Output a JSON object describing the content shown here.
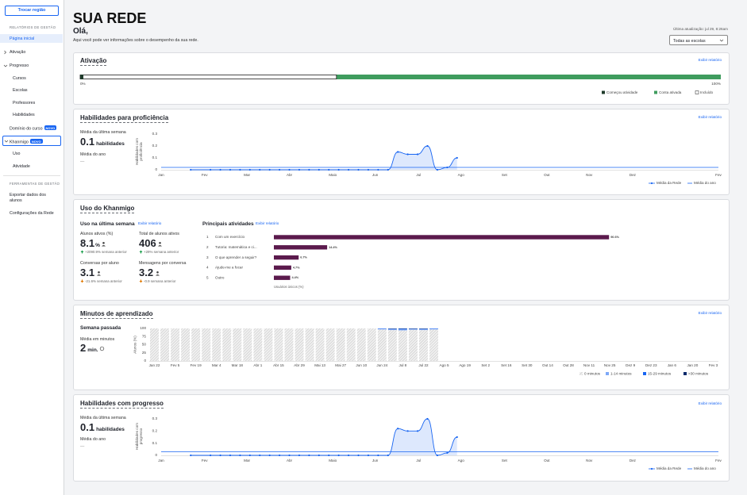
{
  "sidebar": {
    "button": "Trocar região",
    "reports_heading": "RELATÓRIOS DE GESTÃO",
    "items": [
      {
        "label": "Página inicial"
      },
      {
        "label": "Ativação"
      },
      {
        "label": "Progresso"
      },
      {
        "label": "Cursos"
      },
      {
        "label": "Escolas"
      },
      {
        "label": "Professores"
      },
      {
        "label": "Habilidades"
      },
      {
        "label": "Domínio do curso",
        "badge": "NOVO"
      },
      {
        "label": "Khanmigo",
        "badge": "NOVO"
      },
      {
        "label": "Uso"
      },
      {
        "label": "Atividade"
      }
    ],
    "tools_heading": "FERRAMENTAS DE GESTÃO",
    "tools": [
      "Exportar dados dos alunos",
      "Configurações da Rede"
    ]
  },
  "header": {
    "title": "SUA REDE",
    "greeting": "Olá,",
    "subtitle": "Aqui você pode ver informações sobre o desempenho da sua rede.",
    "last_update": "Última atualização: jul 29, 8:26am",
    "school_filter": "Todas as escolas"
  },
  "activation": {
    "title": "Ativação",
    "link": "Exibir relatório",
    "chart_data": {
      "type": "bar",
      "orientation": "horizontal",
      "xlim": [
        0,
        100
      ],
      "xticks": [
        {
          "value": 0,
          "label": "0%"
        },
        {
          "value": 100,
          "label": "100%"
        }
      ],
      "series": [
        {
          "name": "Conta ativada",
          "color": "#3f9c5e",
          "values": [
            100
          ]
        },
        {
          "name": "Incluído",
          "color": "#ffffff",
          "stroke": "#1f1f1f",
          "values": [
            40
          ]
        },
        {
          "name": "Começou atividade",
          "color": "#1e3a2a",
          "values": [
            0.5
          ]
        }
      ]
    }
  },
  "proficiency": {
    "title": "Habilidades para proficiência",
    "link": "Exibir relatório",
    "week_label": "Média da última semana",
    "week_value": 0.1,
    "week_unit": "habilidades",
    "year_label": "Média do ano",
    "year_value": "—",
    "chart_data": {
      "type": "line",
      "y_label": "Habilidades com proficiência",
      "x": [
        3,
        5,
        6,
        7,
        8,
        9,
        10,
        11,
        12,
        13,
        14,
        15,
        16,
        17,
        18,
        19,
        20,
        21,
        22,
        23,
        24,
        25,
        26,
        27,
        28,
        29,
        30
      ],
      "xlim": [
        0,
        56.5
      ],
      "xticks": [
        {
          "value": 0,
          "label": "Jan"
        },
        {
          "value": 4.4,
          "label": "Fev"
        },
        {
          "value": 8.7,
          "label": "Mar"
        },
        {
          "value": 13,
          "label": "Abr"
        },
        {
          "value": 17.4,
          "label": "Maio"
        },
        {
          "value": 21.7,
          "label": "Jun"
        },
        {
          "value": 26.1,
          "label": "Jul"
        },
        {
          "value": 30.4,
          "label": "Ago"
        },
        {
          "value": 34.8,
          "label": "Set"
        },
        {
          "value": 39.1,
          "label": "Out"
        },
        {
          "value": 43.4,
          "label": "Nov"
        },
        {
          "value": 47.8,
          "label": "Dez"
        },
        {
          "value": 56.5,
          "label": "Fev"
        }
      ],
      "ylim": [
        0,
        0.3
      ],
      "yticks": [
        0,
        0.1,
        0.2,
        0.3
      ],
      "series": [
        {
          "name": "Média da Rede",
          "color": "#1865f2",
          "values": [
            0,
            0,
            0,
            0,
            0,
            0,
            0,
            0,
            0,
            0,
            0,
            0,
            0,
            0,
            0,
            0,
            0,
            0,
            0,
            0,
            0.15,
            0.13,
            0.13,
            0.2,
            0,
            0.02,
            0.1
          ]
        }
      ],
      "reference": {
        "name": "Média do ano",
        "color": "#1865f2",
        "value": 0.02
      }
    }
  },
  "khanmigo": {
    "title": "Uso do Khanmigo",
    "week_heading": "Uso na última semana",
    "link": "Exibir relatório",
    "metrics": [
      {
        "label": "Alunos ativos (%)",
        "value": 8.1,
        "unit": "%",
        "change": "+2090.9% semana anterior",
        "trend": "up"
      },
      {
        "label": "Total de alunos ativos",
        "value": 406,
        "change": "+29% semana anterior",
        "trend": "up"
      },
      {
        "label": "Conversas por aluno",
        "value": 3.1,
        "change": "-21.6% semana anterior",
        "trend": "down"
      },
      {
        "label": "Mensagens por conversa",
        "value": 3.2,
        "change": "-0.9 semana anterior",
        "trend": "down"
      }
    ],
    "activities": {
      "title": "Principais atividades",
      "link": "Exibir relatório",
      "chart_data": {
        "type": "bar",
        "orientation": "horizontal",
        "ranks": [
          1,
          2,
          3,
          4,
          5
        ],
        "categories": [
          "Com um exercício",
          "Tutoria: matemática e ci...",
          "O que aprender a seguir?",
          "Ajude-me a focar",
          "Outro"
        ],
        "values": [
          90.6,
          14.4,
          6.7,
          4.7,
          4.4
        ],
        "value_labels": [
          "90.6%",
          "14.4%",
          "6.7%",
          "4.7%",
          "4.4%"
        ],
        "xlim": [
          0,
          100
        ],
        "color": "#5b1a4d",
        "x_label": "Usuários únicos (%)"
      }
    }
  },
  "minutes": {
    "title": "Minutos de aprendizado",
    "link": "Exibir relatório",
    "week_heading": "Semana passada",
    "avg_label": "Média em minutos",
    "avg_value": 2,
    "avg_unit": "min.",
    "chart_data": {
      "type": "bar",
      "stacked": true,
      "y_label": "Alunos (%)",
      "categories": [
        "Jan 22",
        null,
        "Fev 5",
        null,
        "Fev 19",
        null,
        "Mar 4",
        null,
        "Mar 18",
        null,
        "Abr 1",
        null,
        "Abr 15",
        null,
        "Abr 29",
        null,
        "Mai 13",
        null,
        "Mai 27",
        null,
        "Jun 10",
        null,
        "Jun 24",
        null,
        "Jul 8",
        null,
        "Jul 22",
        null,
        "Ago 5",
        null,
        "Ago 19",
        null,
        "Set 2",
        null,
        "Set 16",
        null,
        "Set 30",
        null,
        "Out 14",
        null,
        "Out 28",
        null,
        "Nov 11",
        null,
        "Nov 25",
        null,
        "Dez 9",
        null,
        "Dez 23",
        null,
        "Jan 6",
        null,
        "Jan 20",
        null,
        "Fev 3"
      ],
      "ylim": [
        0,
        100
      ],
      "yticks": [
        0,
        25,
        50,
        75,
        100
      ],
      "series": [
        {
          "name": "0 minutos",
          "color": "#c6c6c6",
          "hatched": true,
          "values": [
            100,
            100,
            100,
            100,
            100,
            100,
            100,
            100,
            100,
            100,
            100,
            100,
            100,
            100,
            100,
            100,
            100,
            100,
            100,
            100,
            100,
            100,
            97,
            95,
            94,
            96,
            95,
            97,
            null,
            null,
            null,
            null,
            null,
            null,
            null,
            null,
            null,
            null,
            null,
            null,
            null,
            null,
            null,
            null,
            null,
            null,
            null,
            null,
            null,
            null,
            null,
            null,
            null,
            null,
            null
          ]
        },
        {
          "name": "1-14 minutos",
          "color": "#7ea8f7",
          "values": [
            0,
            0,
            0,
            0,
            0,
            0,
            0,
            0,
            0,
            0,
            0,
            0,
            0,
            0,
            0,
            0,
            0,
            0,
            0,
            0,
            0,
            0,
            2,
            3,
            3,
            2,
            3,
            2,
            null,
            null,
            null,
            null,
            null,
            null,
            null,
            null,
            null,
            null,
            null,
            null,
            null,
            null,
            null,
            null,
            null,
            null,
            null,
            null,
            null,
            null,
            null,
            null,
            null,
            null,
            null
          ]
        },
        {
          "name": "15-29 minutos",
          "color": "#1865f2",
          "values": [
            0,
            0,
            0,
            0,
            0,
            0,
            0,
            0,
            0,
            0,
            0,
            0,
            0,
            0,
            0,
            0,
            0,
            0,
            0,
            0,
            0,
            0,
            1,
            1,
            2,
            1,
            1,
            1,
            null,
            null,
            null,
            null,
            null,
            null,
            null,
            null,
            null,
            null,
            null,
            null,
            null,
            null,
            null,
            null,
            null,
            null,
            null,
            null,
            null,
            null,
            null,
            null,
            null,
            null,
            null
          ]
        },
        {
          "name": ">30 minutos",
          "color": "#0b2a6b",
          "values": [
            0,
            0,
            0,
            0,
            0,
            0,
            0,
            0,
            0,
            0,
            0,
            0,
            0,
            0,
            0,
            0,
            0,
            0,
            0,
            0,
            0,
            0,
            0,
            1,
            1,
            1,
            1,
            0,
            null,
            null,
            null,
            null,
            null,
            null,
            null,
            null,
            null,
            null,
            null,
            null,
            null,
            null,
            null,
            null,
            null,
            null,
            null,
            null,
            null,
            null,
            null,
            null,
            null,
            null,
            null
          ]
        }
      ]
    }
  },
  "progress": {
    "title": "Habilidades com progresso",
    "link": "Exibir relatório",
    "week_label": "Média da última semana",
    "week_value": 0.1,
    "week_unit": "habilidades",
    "year_label": "Média do ano",
    "year_value": "—",
    "chart_data": {
      "type": "line",
      "y_label": "Habilidades com progresso",
      "x": [
        3,
        5,
        6,
        7,
        8,
        9,
        10,
        11,
        12,
        13,
        14,
        15,
        16,
        17,
        18,
        19,
        20,
        21,
        22,
        23,
        24,
        25,
        26,
        27,
        28,
        29,
        30
      ],
      "xlim": [
        0,
        56.5
      ],
      "xticks": [
        {
          "value": 0,
          "label": "Jan"
        },
        {
          "value": 4.4,
          "label": "Fev"
        },
        {
          "value": 8.7,
          "label": "Mar"
        },
        {
          "value": 13,
          "label": "Abr"
        },
        {
          "value": 17.4,
          "label": "Maio"
        },
        {
          "value": 21.7,
          "label": "Jun"
        },
        {
          "value": 26.1,
          "label": "Jul"
        },
        {
          "value": 30.4,
          "label": "Ago"
        },
        {
          "value": 34.8,
          "label": "Set"
        },
        {
          "value": 39.1,
          "label": "Out"
        },
        {
          "value": 43.4,
          "label": "Nov"
        },
        {
          "value": 47.8,
          "label": "Dez"
        },
        {
          "value": 56.5,
          "label": "Fev"
        }
      ],
      "ylim": [
        0,
        0.3
      ],
      "yticks": [
        0,
        0.1,
        0.2,
        0.3
      ],
      "series": [
        {
          "name": "Média da Rede",
          "color": "#1865f2",
          "values": [
            0,
            0,
            0,
            0,
            0,
            0,
            0,
            0,
            0,
            0,
            0,
            0,
            0,
            0,
            0,
            0,
            0,
            0,
            0,
            0,
            0.22,
            0.2,
            0.2,
            0.3,
            0,
            0.02,
            0.15
          ]
        }
      ],
      "reference": {
        "name": "Média do ano",
        "color": "#1865f2",
        "value": 0.03
      }
    }
  }
}
